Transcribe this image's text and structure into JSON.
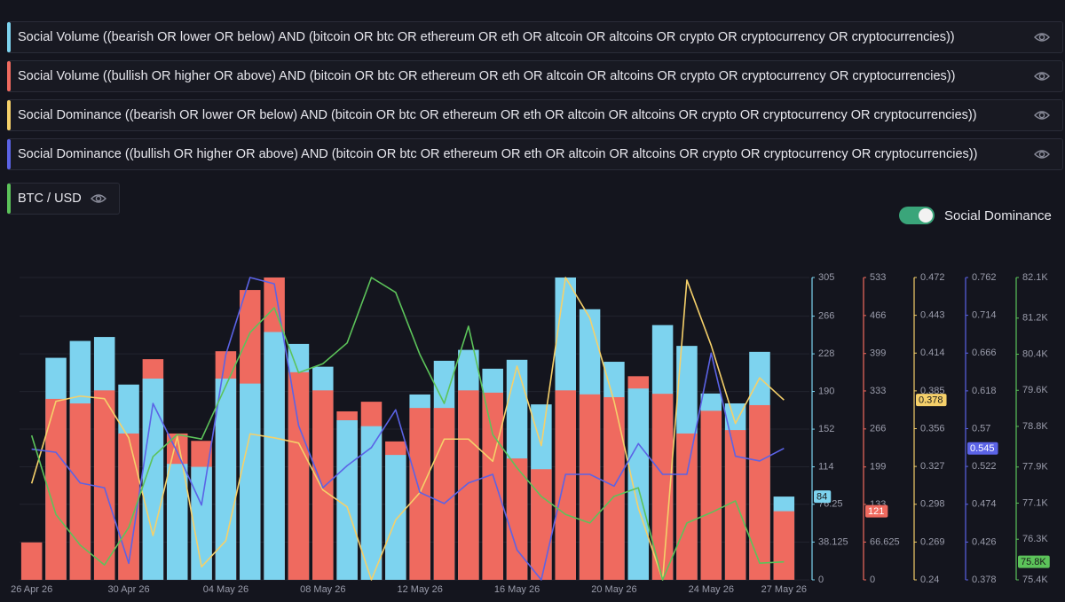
{
  "chart_data": {
    "type": "combo",
    "toggle_label": "Social Dominance",
    "categories": [
      "26 Apr 26",
      null,
      null,
      null,
      "30 Apr 26",
      null,
      null,
      null,
      "04 May 26",
      null,
      null,
      null,
      "08 May 26",
      null,
      null,
      null,
      "12 May 26",
      null,
      null,
      null,
      "16 May 26",
      null,
      null,
      null,
      "20 May 26",
      null,
      null,
      null,
      "24 May 26",
      null,
      null,
      "27 May 26"
    ],
    "series": [
      {
        "name": "Social Volume ((bearish OR lower OR below) AND (bitcoin OR btc OR ethereum OR eth OR altcoin OR altcoins OR crypto OR cryptocurrency OR cryptocurrencies))",
        "type": "bar",
        "color": "#7dd3ef",
        "ylim": [
          0,
          305
        ],
        "yticks": [
          0,
          38.125,
          76.25,
          114,
          152,
          190,
          228,
          266,
          305
        ],
        "values": [
          0,
          224,
          241,
          245,
          197,
          203,
          117,
          114,
          203,
          198,
          250,
          238,
          215,
          161,
          155,
          126,
          187,
          221,
          232,
          213,
          222,
          177,
          305,
          273,
          220,
          193,
          257,
          236,
          188,
          178,
          230,
          84
        ]
      },
      {
        "name": "Social Volume ((bullish OR higher OR above) AND (bitcoin OR btc OR ethereum OR eth OR altcoin OR altcoins OR crypto OR cryptocurrency OR cryptocurrencies))",
        "type": "bar",
        "color": "#ef6a5f",
        "ylim": [
          0,
          533
        ],
        "yticks": [
          0,
          66.625,
          133,
          199,
          266,
          333,
          399,
          466,
          533
        ],
        "values": [
          66,
          319,
          311,
          334,
          258,
          389,
          258,
          245,
          403,
          511,
          533,
          366,
          334,
          297,
          314,
          244,
          303,
          303,
          334,
          330,
          214,
          195,
          334,
          327,
          322,
          359,
          328,
          258,
          298,
          264,
          308,
          121
        ]
      },
      {
        "name": "Social Dominance ((bearish OR lower OR below) AND (bitcoin OR btc OR ethereum OR eth OR altcoin OR altcoins OR crypto OR cryptocurrency OR cryptocurrencies))",
        "type": "line",
        "color": "#f5d06a",
        "ylim": [
          0.24,
          0.472
        ],
        "yticks": [
          0.24,
          0.269,
          0.298,
          0.327,
          0.356,
          0.385,
          0.414,
          0.443,
          0.472
        ],
        "values": [
          0.314,
          0.377,
          0.381,
          0.379,
          0.349,
          0.274,
          0.35,
          0.25,
          0.27,
          0.352,
          0.349,
          0.345,
          0.309,
          0.296,
          0.24,
          0.286,
          0.307,
          0.348,
          0.348,
          0.331,
          0.404,
          0.343,
          0.472,
          0.441,
          0.377,
          0.295,
          0.24,
          0.47,
          0.42,
          0.36,
          0.395,
          0.378
        ]
      },
      {
        "name": "Social Dominance ((bullish OR higher OR above) AND (bitcoin OR btc OR ethereum OR eth OR altcoin OR altcoins OR crypto OR cryptocurrency OR cryptocurrencies))",
        "type": "line",
        "color": "#5b63e6",
        "ylim": [
          0.378,
          0.762
        ],
        "yticks": [
          0.378,
          0.426,
          0.474,
          0.522,
          0.57,
          0.618,
          0.666,
          0.714,
          0.762
        ],
        "values": [
          0.544,
          0.54,
          0.501,
          0.495,
          0.399,
          0.602,
          0.54,
          0.473,
          0.664,
          0.762,
          0.754,
          0.574,
          0.495,
          0.523,
          0.546,
          0.594,
          0.489,
          0.475,
          0.501,
          0.512,
          0.416,
          0.378,
          0.512,
          0.512,
          0.497,
          0.551,
          0.512,
          0.512,
          0.666,
          0.535,
          0.529,
          0.545
        ]
      },
      {
        "name": "BTC / USD",
        "type": "line",
        "color": "#5cc35a",
        "last_value_label": "75.8K",
        "ylim": [
          75400,
          82100
        ],
        "yticks": [
          {
            "value": 75400,
            "label": "75.4K"
          },
          {
            "value": 76300,
            "label": "76.3K"
          },
          {
            "value": 77100,
            "label": "77.1K"
          },
          {
            "value": 77900,
            "label": "77.9K"
          },
          {
            "value": 78800,
            "label": "78.8K"
          },
          {
            "value": 79600,
            "label": "79.6K"
          },
          {
            "value": 80400,
            "label": "80.4K"
          },
          {
            "value": 81200,
            "label": "81.2K"
          },
          {
            "value": 82100,
            "label": "82.1K"
          }
        ],
        "values": [
          78600,
          76850,
          76170,
          75730,
          76560,
          78130,
          78620,
          78520,
          79700,
          80880,
          81430,
          79990,
          80190,
          80650,
          82100,
          81770,
          80390,
          79310,
          81020,
          78620,
          77880,
          77250,
          76850,
          76660,
          77250,
          77440,
          75400,
          76660,
          76890,
          77150,
          75770,
          75800
        ]
      }
    ]
  }
}
